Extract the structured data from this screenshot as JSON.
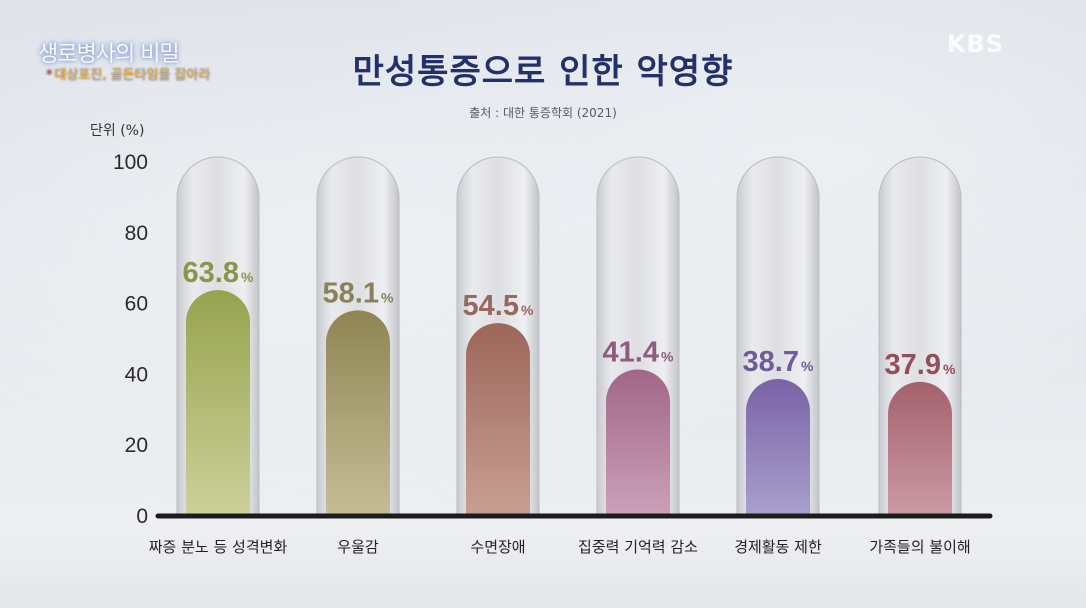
{
  "logo": {
    "title": "생로병사의 비밀",
    "subtitle_mark": "*",
    "subtitle": "대상포진, 골든타임을 잡아라"
  },
  "broadcaster": "KBS",
  "chart_data": {
    "type": "bar",
    "title": "만성통증으로 인한 악영향",
    "subtitle": "출처 : 대한 통증학회 (2021)",
    "ylabel": "단위 (%)",
    "ylim": [
      0,
      100
    ],
    "yticks": [
      0,
      20,
      40,
      60,
      80,
      100
    ],
    "value_suffix": "%",
    "categories": [
      "짜증 분노 등 성격변화",
      "우울감",
      "수면장애",
      "집중력 기억력 감소",
      "경제활동 제한",
      "가족들의 불이해"
    ],
    "values": [
      63.8,
      58.1,
      54.5,
      41.4,
      38.7,
      37.9
    ],
    "bar_colors": [
      [
        "#96a34e",
        "#cdd19a"
      ],
      [
        "#8f8553",
        "#c6bd97"
      ],
      [
        "#9c6659",
        "#c99f93"
      ],
      [
        "#a06686",
        "#cba1b9"
      ],
      [
        "#7a62a6",
        "#a9a0cd"
      ],
      [
        "#a3616d",
        "#cc9aa3"
      ]
    ],
    "label_colors": [
      "#8a9548",
      "#8a8256",
      "#96685e",
      "#8e5c7c",
      "#6f5a9c",
      "#944d5b"
    ],
    "grid": false,
    "legend": "none"
  }
}
